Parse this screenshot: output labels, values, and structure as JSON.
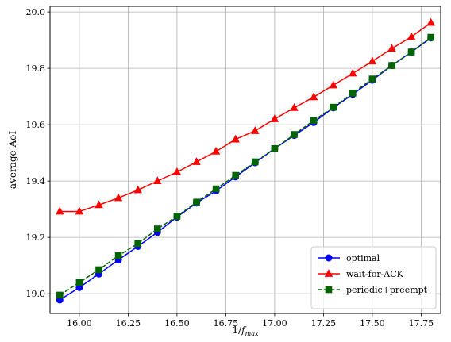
{
  "chart_data": {
    "type": "line",
    "xlabel": "1/f_max",
    "xlabel_main": "1/",
    "xlabel_italic": "f",
    "xlabel_sub": "max",
    "ylabel": "average AoI",
    "xlim": [
      15.85,
      17.85
    ],
    "ylim": [
      18.93,
      20.02
    ],
    "x_ticks": [
      16.0,
      16.25,
      16.5,
      16.75,
      17.0,
      17.25,
      17.5,
      17.75
    ],
    "x_tick_labels": [
      "16.00",
      "16.25",
      "16.50",
      "16.75",
      "17.00",
      "17.25",
      "17.50",
      "17.75"
    ],
    "y_ticks": [
      19.0,
      19.2,
      19.4,
      19.6,
      19.8,
      20.0
    ],
    "y_tick_labels": [
      "19.0",
      "19.2",
      "19.4",
      "19.6",
      "19.8",
      "20.0"
    ],
    "grid": true,
    "legend_position": "bottom-right",
    "x": [
      15.9,
      16.0,
      16.1,
      16.2,
      16.3,
      16.4,
      16.5,
      16.6,
      16.7,
      16.8,
      16.9,
      17.0,
      17.1,
      17.2,
      17.3,
      17.4,
      17.5,
      17.6,
      17.7,
      17.8
    ],
    "series": [
      {
        "name": "optimal",
        "color": "#0000ff",
        "marker": "circle",
        "dash": "solid",
        "values": [
          18.978,
          19.022,
          19.07,
          19.12,
          19.168,
          19.218,
          19.272,
          19.322,
          19.365,
          19.415,
          19.465,
          19.515,
          19.562,
          19.608,
          19.66,
          19.708,
          19.758,
          19.81,
          19.858,
          19.908
        ]
      },
      {
        "name": "wait-for-ACK",
        "color": "#ff0000",
        "marker": "triangle",
        "dash": "solid",
        "values": [
          19.292,
          19.292,
          19.315,
          19.34,
          19.368,
          19.4,
          19.432,
          19.468,
          19.505,
          19.548,
          19.578,
          19.62,
          19.66,
          19.698,
          19.74,
          19.782,
          19.825,
          19.87,
          19.912,
          19.962
        ]
      },
      {
        "name": "periodic+preempt",
        "color": "#006400",
        "marker": "square",
        "dash": "dashed",
        "values": [
          18.995,
          19.04,
          19.085,
          19.135,
          19.178,
          19.23,
          19.275,
          19.325,
          19.372,
          19.42,
          19.468,
          19.515,
          19.565,
          19.615,
          19.662,
          19.712,
          19.762,
          19.81,
          19.858,
          19.91
        ]
      }
    ]
  }
}
